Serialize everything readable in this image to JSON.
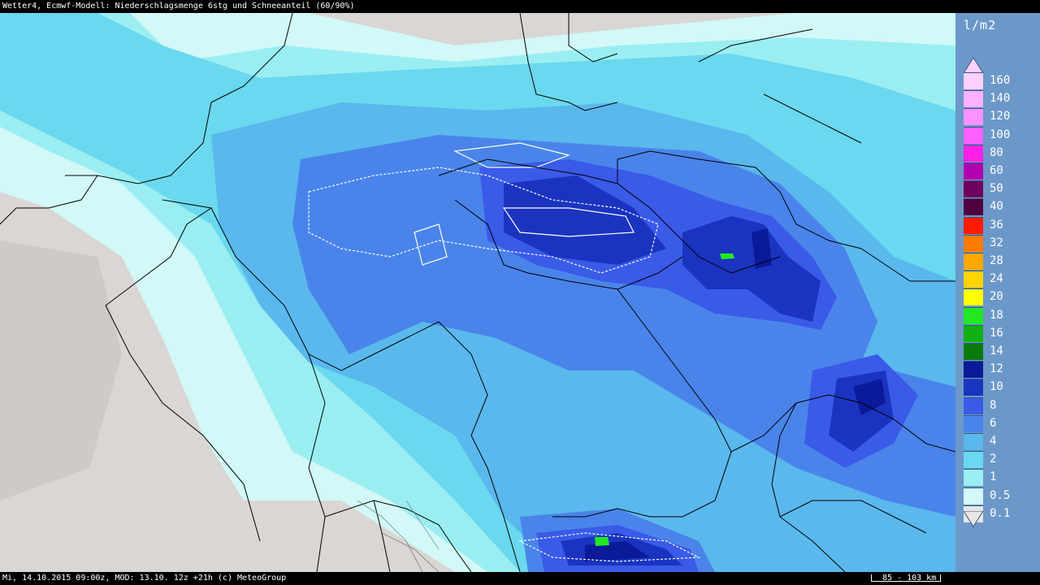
{
  "header": {
    "title": "Wetter4, Ecmwf-Modell: Niederschlagsmenge 6stg und Schneeanteil (60/90%)"
  },
  "legend": {
    "unit": "l/m2",
    "levels": [
      {
        "label": "160",
        "color": "#ffd0ff"
      },
      {
        "label": "140",
        "color": "#ffb0ff"
      },
      {
        "label": "120",
        "color": "#ff90ff"
      },
      {
        "label": "100",
        "color": "#ff60ff"
      },
      {
        "label": "80",
        "color": "#ff20e8"
      },
      {
        "label": "60",
        "color": "#b000b0"
      },
      {
        "label": "50",
        "color": "#700060"
      },
      {
        "label": "40",
        "color": "#500040"
      },
      {
        "label": "36",
        "color": "#ff1a00"
      },
      {
        "label": "32",
        "color": "#ff7a00"
      },
      {
        "label": "28",
        "color": "#ffa800"
      },
      {
        "label": "24",
        "color": "#ffd400"
      },
      {
        "label": "20",
        "color": "#ffff00"
      },
      {
        "label": "18",
        "color": "#22e822"
      },
      {
        "label": "16",
        "color": "#10b010"
      },
      {
        "label": "14",
        "color": "#0a7a0a"
      },
      {
        "label": "12",
        "color": "#0a1a98"
      },
      {
        "label": "10",
        "color": "#1a34c0"
      },
      {
        "label": "8",
        "color": "#3a5ae8"
      },
      {
        "label": "6",
        "color": "#4a84ea"
      },
      {
        "label": "4",
        "color": "#5ab8ec"
      },
      {
        "label": "2",
        "color": "#6ad8ee"
      },
      {
        "label": "1",
        "color": "#9aeef2"
      },
      {
        "label": "0.5",
        "color": "#d2f8f8"
      },
      {
        "label": "0.1",
        "color": "#e8e6e4"
      }
    ]
  },
  "footer": {
    "timestamp": "Mi, 14.10.2015 09:00z, MOD: 13.10. 12z +21h (c) MeteoGroup",
    "scale": "85 - 103 km"
  }
}
